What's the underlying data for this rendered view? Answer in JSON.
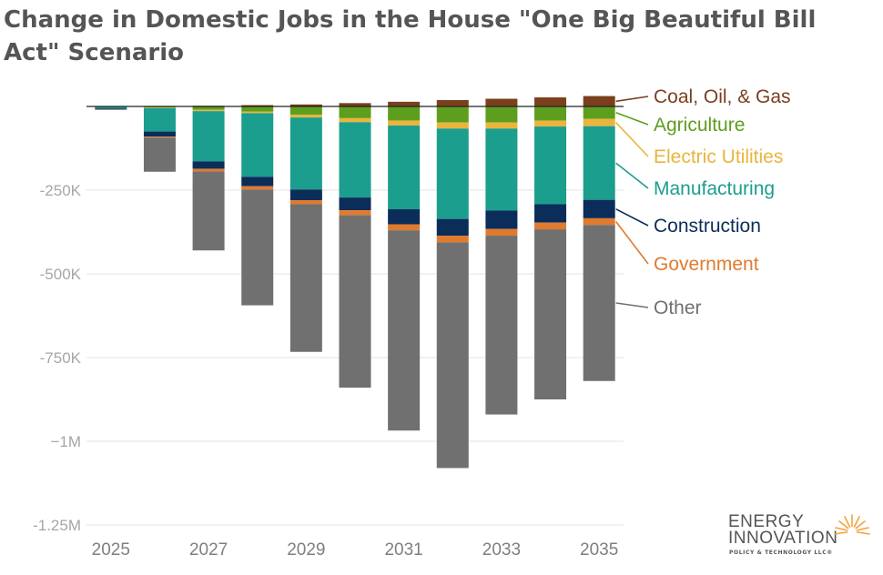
{
  "title": "Change in Domestic Jobs in the House \"One Big Beautiful Bill Act\" Scenario",
  "logo": {
    "line1": "ENERGY",
    "line2": "INNOVATION",
    "tagline": "POLICY & TECHNOLOGY LLC®"
  },
  "chart_data": {
    "type": "bar",
    "stacked": true,
    "title": "Change in Domestic Jobs in the House \"One Big Beautiful Bill Act\" Scenario",
    "xlabel": "",
    "ylabel": "",
    "ylim": [
      -1250000,
      0
    ],
    "yticks": [
      {
        "value": -250000,
        "label": "-250K"
      },
      {
        "value": -500000,
        "label": "-500K"
      },
      {
        "value": -750000,
        "label": "-750K"
      },
      {
        "value": -1000000,
        "label": "−1M"
      },
      {
        "value": -1250000,
        "label": "-1.25M"
      }
    ],
    "categories": [
      "2025",
      "2026",
      "2027",
      "2028",
      "2029",
      "2030",
      "2031",
      "2032",
      "2033",
      "2034",
      "2035"
    ],
    "xtick_labels": [
      "2025",
      "2027",
      "2029",
      "2031",
      "2033",
      "2035"
    ],
    "grid": true,
    "legend_position": "right",
    "series": [
      {
        "name": "Coal, Oil, & Gas",
        "color": "#7B3F1E",
        "sign": "positive",
        "values": [
          0,
          0,
          2000,
          4000,
          6000,
          10000,
          14000,
          19000,
          23000,
          27000,
          31000
        ]
      },
      {
        "name": "Agriculture",
        "color": "#5E9E1E",
        "values": [
          -1000,
          -3000,
          -10000,
          -15000,
          -25000,
          -35000,
          -42000,
          -48000,
          -48000,
          -42000,
          -37000
        ]
      },
      {
        "name": "Electric Utilities",
        "color": "#E9B53D",
        "values": [
          0,
          -2000,
          -4000,
          -5000,
          -8000,
          -12000,
          -15000,
          -18000,
          -18000,
          -18000,
          -22000
        ]
      },
      {
        "name": "Manufacturing",
        "color": "#1B9E8E",
        "values": [
          -5000,
          -70000,
          -150000,
          -190000,
          -215000,
          -225000,
          -250000,
          -270000,
          -245000,
          -232000,
          -220000
        ]
      },
      {
        "name": "Construction",
        "color": "#0B2D5A",
        "values": [
          -2000,
          -15000,
          -22000,
          -28000,
          -32000,
          -38000,
          -45000,
          -50000,
          -55000,
          -55000,
          -55000
        ]
      },
      {
        "name": "Government",
        "color": "#E07A2E",
        "values": [
          0,
          -3000,
          -8000,
          -10000,
          -12000,
          -15000,
          -18000,
          -20000,
          -20000,
          -20000,
          -20000
        ]
      },
      {
        "name": "Other",
        "color": "#707070",
        "values": [
          -2000,
          -102000,
          -236000,
          -346000,
          -441000,
          -515000,
          -598000,
          -674000,
          -534000,
          -508000,
          -466000
        ]
      }
    ]
  }
}
